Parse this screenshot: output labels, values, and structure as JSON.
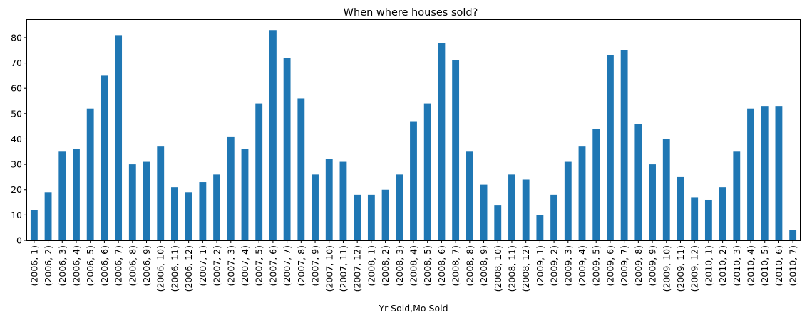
{
  "chart_data": {
    "type": "bar",
    "title": "When where houses sold?",
    "xlabel": "Yr Sold,Mo Sold",
    "ylabel": "",
    "ylim": [
      0,
      87
    ],
    "yticks": [
      0,
      10,
      20,
      30,
      40,
      50,
      60,
      70,
      80
    ],
    "grid": false,
    "legend": "none",
    "color": "#1f77b4",
    "categories": [
      "(2006, 1)",
      "(2006, 2)",
      "(2006, 3)",
      "(2006, 4)",
      "(2006, 5)",
      "(2006, 6)",
      "(2006, 7)",
      "(2006, 8)",
      "(2006, 9)",
      "(2006, 10)",
      "(2006, 11)",
      "(2006, 12)",
      "(2007, 1)",
      "(2007, 2)",
      "(2007, 3)",
      "(2007, 4)",
      "(2007, 5)",
      "(2007, 6)",
      "(2007, 7)",
      "(2007, 8)",
      "(2007, 9)",
      "(2007, 10)",
      "(2007, 11)",
      "(2007, 12)",
      "(2008, 1)",
      "(2008, 2)",
      "(2008, 3)",
      "(2008, 4)",
      "(2008, 5)",
      "(2008, 6)",
      "(2008, 7)",
      "(2008, 8)",
      "(2008, 9)",
      "(2008, 10)",
      "(2008, 11)",
      "(2008, 12)",
      "(2009, 1)",
      "(2009, 2)",
      "(2009, 3)",
      "(2009, 4)",
      "(2009, 5)",
      "(2009, 6)",
      "(2009, 7)",
      "(2009, 8)",
      "(2009, 9)",
      "(2009, 10)",
      "(2009, 11)",
      "(2009, 12)",
      "(2010, 1)",
      "(2010, 2)",
      "(2010, 3)",
      "(2010, 4)",
      "(2010, 5)",
      "(2010, 6)",
      "(2010, 7)"
    ],
    "values": [
      12,
      19,
      35,
      36,
      52,
      65,
      81,
      30,
      31,
      37,
      21,
      19,
      23,
      26,
      41,
      36,
      54,
      83,
      72,
      56,
      26,
      32,
      31,
      18,
      18,
      20,
      26,
      47,
      54,
      78,
      71,
      35,
      22,
      14,
      26,
      24,
      10,
      18,
      31,
      37,
      44,
      73,
      75,
      46,
      30,
      40,
      25,
      17,
      16,
      21,
      35,
      52,
      53,
      53,
      4
    ]
  }
}
